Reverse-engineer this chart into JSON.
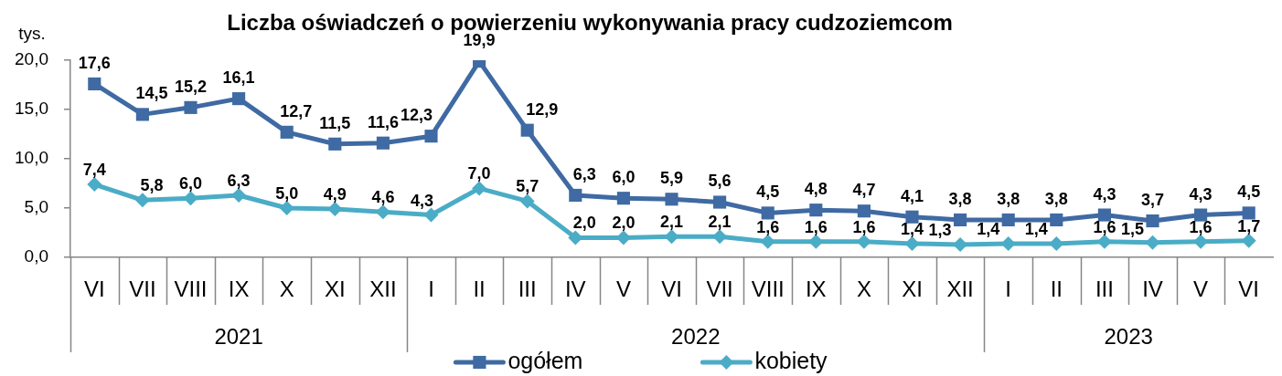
{
  "chart_data": {
    "type": "line",
    "title": "Liczba oświadczeń o powierzeniu wykonywania pracy cudzoziemcom",
    "ylabel": "tys.",
    "categories": [
      "VI",
      "VII",
      "VIII",
      "IX",
      "X",
      "XI",
      "XII",
      "I",
      "II",
      "III",
      "IV",
      "V",
      "VI",
      "VII",
      "VIII",
      "IX",
      "X",
      "XI",
      "XII",
      "I",
      "II",
      "III",
      "IV",
      "V",
      "VI"
    ],
    "ylim": [
      0,
      20
    ],
    "yticks": [
      {
        "value": 0,
        "label": "0,0"
      },
      {
        "value": 5,
        "label": "5,0"
      },
      {
        "value": 10,
        "label": "10,0"
      },
      {
        "value": 15,
        "label": "15,0"
      },
      {
        "value": 20,
        "label": "20,0"
      }
    ],
    "series": [
      {
        "name": "ogółem",
        "color": "#3f6aa3",
        "marker": "square",
        "values": [
          17.6,
          14.5,
          15.2,
          16.1,
          12.7,
          11.5,
          11.6,
          12.3,
          19.9,
          12.9,
          6.3,
          6.0,
          5.9,
          5.6,
          4.5,
          4.8,
          4.7,
          4.1,
          3.8,
          3.8,
          3.8,
          4.3,
          3.7,
          4.3,
          4.5
        ],
        "value_labels": [
          "17,6",
          "14,5",
          "15,2",
          "16,1",
          "12,7",
          "11,5",
          "11,6",
          "12,3",
          "19,9",
          "12,9",
          "6,3",
          "6,0",
          "5,9",
          "5,6",
          "4,5",
          "4,8",
          "4,7",
          "4,1",
          "3,8",
          "3,8",
          "3,8",
          "4,3",
          "3,7",
          "4,3",
          "4,5"
        ]
      },
      {
        "name": "kobiety",
        "color": "#4aacc6",
        "marker": "diamond",
        "values": [
          7.4,
          5.8,
          6.0,
          6.3,
          5.0,
          4.9,
          4.6,
          4.3,
          7.0,
          5.7,
          2.0,
          2.0,
          2.1,
          2.1,
          1.6,
          1.6,
          1.6,
          1.4,
          1.3,
          1.4,
          1.4,
          1.6,
          1.5,
          1.6,
          1.7
        ],
        "value_labels": [
          "7,4",
          "5,8",
          "6,0",
          "6,3",
          "5,0",
          "4,9",
          "4,6",
          "4,3",
          "7,0",
          "5,7",
          "2,0",
          "2,0",
          "2,1",
          "2,1",
          "1,6",
          "1,6",
          "1,6",
          "1,4",
          "1,3",
          "1,4",
          "1,4",
          "1,6",
          "1,5",
          "1,6",
          "1,7"
        ]
      }
    ],
    "annotations": [
      "2021",
      "2022",
      "2023"
    ],
    "grid": false,
    "legend": "bottom"
  }
}
